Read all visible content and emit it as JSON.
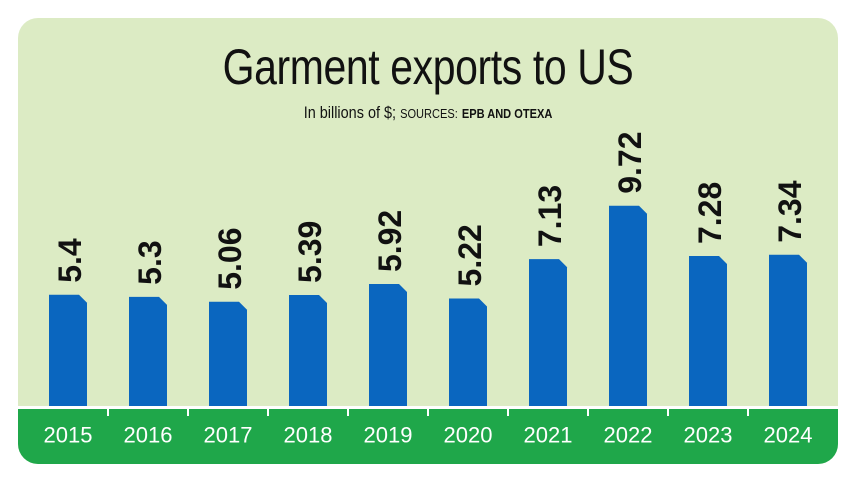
{
  "chart_data": {
    "type": "bar",
    "title": "Garment exports to US",
    "subtitle_prefix": "In billions of $;",
    "subtitle_sources_label": "SOURCES:",
    "subtitle_sources": "EPB AND OTEXA",
    "categories": [
      "2015",
      "2016",
      "2017",
      "2018",
      "2019",
      "2020",
      "2021",
      "2022",
      "2023",
      "2024"
    ],
    "values": [
      5.4,
      5.3,
      5.06,
      5.39,
      5.92,
      5.22,
      7.13,
      9.72,
      7.28,
      7.34
    ],
    "value_labels": [
      "5.4",
      "5.3",
      "5.06",
      "5.39",
      "5.92",
      "5.22",
      "7.13",
      "9.72",
      "7.28",
      "7.34"
    ],
    "xlabel": "",
    "ylabel": "",
    "ylim": [
      0,
      10
    ],
    "colors": {
      "bar": "#0a66bf",
      "background": "#dcebc4",
      "band": "#1fa74a",
      "label": "#111111",
      "tick_label": "#ffffff"
    }
  }
}
